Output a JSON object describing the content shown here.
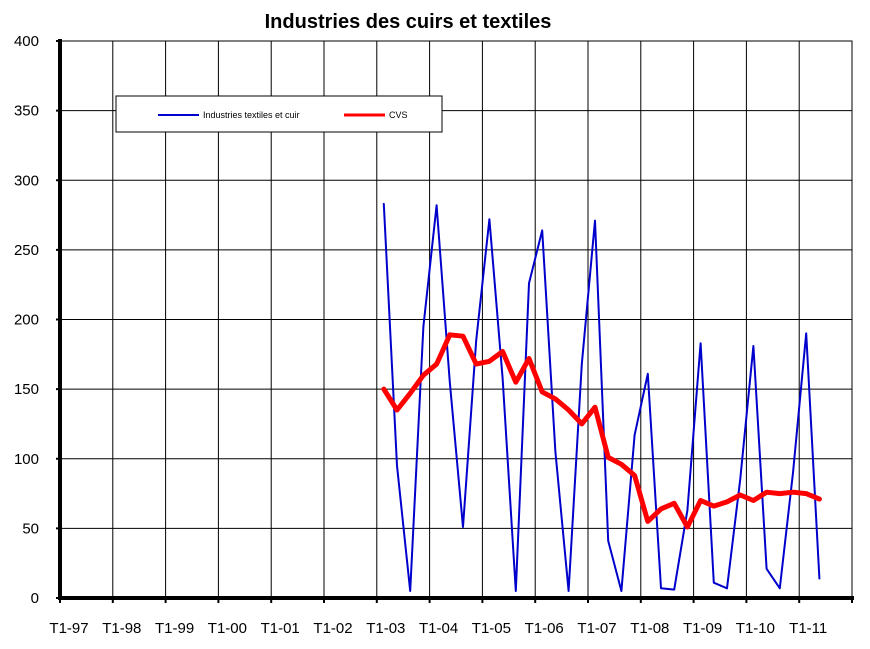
{
  "chart_data": {
    "type": "line",
    "title": "Industries des cuirs et textiles",
    "xlabel": "",
    "ylabel": "",
    "ylim": [
      0,
      400
    ],
    "yticks": [
      0,
      50,
      100,
      150,
      200,
      250,
      300,
      350,
      400
    ],
    "grid": true,
    "legend_position": "top-left",
    "x_tick_labels": [
      "T1-97",
      "T1-98",
      "T1-99",
      "T1-00",
      "T1-01",
      "T1-02",
      "T1-03",
      "T1-04",
      "T1-05",
      "T1-06",
      "T1-07",
      "T1-08",
      "T1-09",
      "T1-10",
      "T1-11"
    ],
    "x_start_tick": "T1-03",
    "series": [
      {
        "name": "Industries textiles et cuir",
        "color": "#0000cc",
        "values": [
          283,
          95,
          5,
          195,
          282,
          155,
          51,
          185,
          272,
          158,
          5,
          226,
          264,
          105,
          5,
          168,
          271,
          41,
          5,
          117,
          161,
          7,
          6,
          63,
          183,
          11,
          7,
          85,
          181,
          21,
          7,
          90,
          190,
          14
        ]
      },
      {
        "name": "CVS",
        "color": "#ff0000",
        "values": [
          150,
          135,
          147,
          160,
          168,
          189,
          188,
          168,
          170,
          177,
          155,
          172,
          148,
          143,
          135,
          125,
          137,
          101,
          96,
          88,
          55,
          64,
          68,
          51,
          70,
          66,
          69,
          74,
          70,
          76,
          75,
          76,
          75,
          71
        ]
      }
    ]
  }
}
